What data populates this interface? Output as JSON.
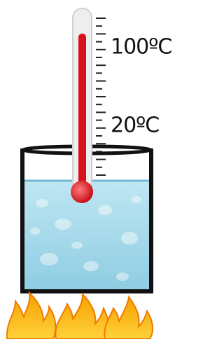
{
  "scale_labels": {
    "upper": "100ºC",
    "lower": "20ºC"
  }
}
